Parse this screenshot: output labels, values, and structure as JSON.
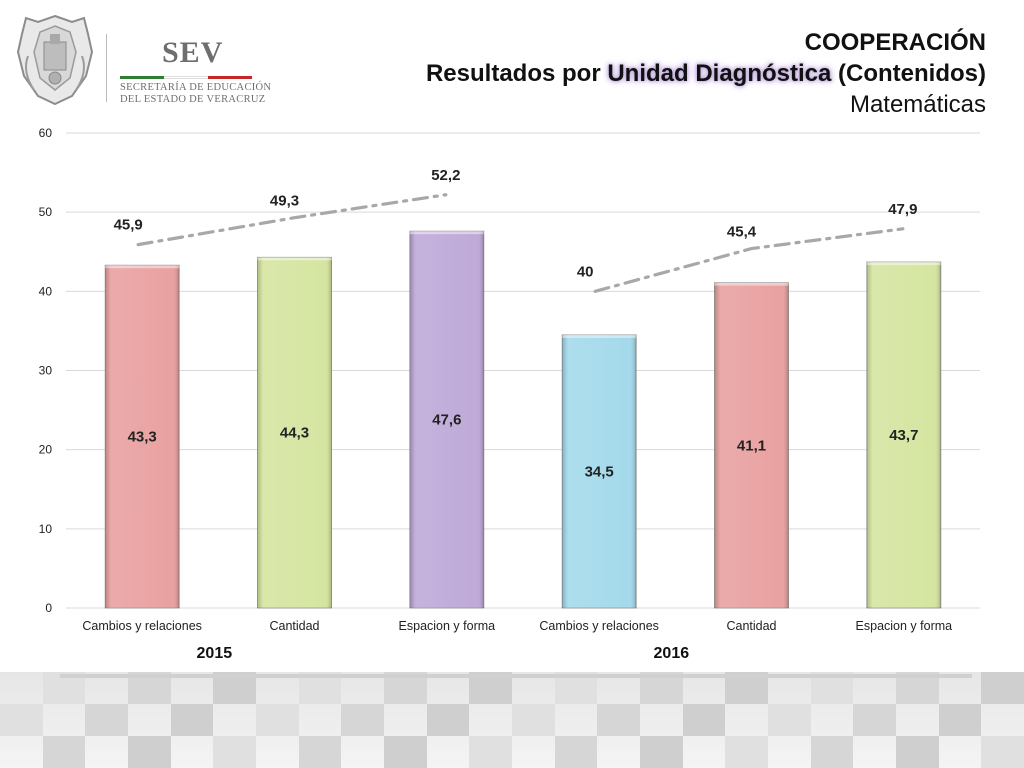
{
  "header": {
    "title_line1": "COOPERACIÓN",
    "title_line2_a": "Resultados por ",
    "title_line2_b": "Unidad Diagnóstica",
    "title_line2_c": " (Contenidos)",
    "title_line3": "Matemáticas"
  },
  "logo": {
    "name": "SEV",
    "sub_line1": "SECRETARÍA DE EDUCACIÓN",
    "sub_line2": "DEL ESTADO DE VERACRUZ",
    "stripe_colors": [
      "#2e7d32",
      "#ffffff",
      "#c62828"
    ]
  },
  "chart_data": {
    "type": "bar",
    "categories": [
      "Cambios y relaciones",
      "Cantidad",
      "Espacion y forma",
      "Cambios y relaciones",
      "Cantidad",
      "Espacion y forma"
    ],
    "values": [
      43.3,
      44.3,
      47.6,
      34.5,
      41.1,
      43.7
    ],
    "value_labels": [
      "43,3",
      "44,3",
      "47,6",
      "34,5",
      "41,1",
      "43,7"
    ],
    "bar_colors": [
      "#e89c9c",
      "#d3e49c",
      "#bba5d6",
      "#9fd8ea",
      "#e89c9c",
      "#d3e49c"
    ],
    "groups": [
      {
        "label": "2015",
        "from": 0,
        "to": 2
      },
      {
        "label": "2016",
        "from": 3,
        "to": 5
      }
    ],
    "overlay_series": [
      {
        "values": [
          45.9,
          49.3,
          52.2
        ],
        "labels": [
          "45,9",
          "49,3",
          "52,2"
        ],
        "indices": [
          0,
          1,
          2
        ],
        "style": "dash-dot",
        "color": "#a8a8a8"
      },
      {
        "values": [
          40,
          45.4,
          47.9
        ],
        "labels": [
          "40",
          "45,4",
          "47,9"
        ],
        "indices": [
          3,
          4,
          5
        ],
        "style": "dash-dot",
        "color": "#a8a8a8"
      }
    ],
    "ylim": [
      0,
      60
    ],
    "yticks": [
      0,
      10,
      20,
      30,
      40,
      50,
      60
    ],
    "grid": true
  }
}
